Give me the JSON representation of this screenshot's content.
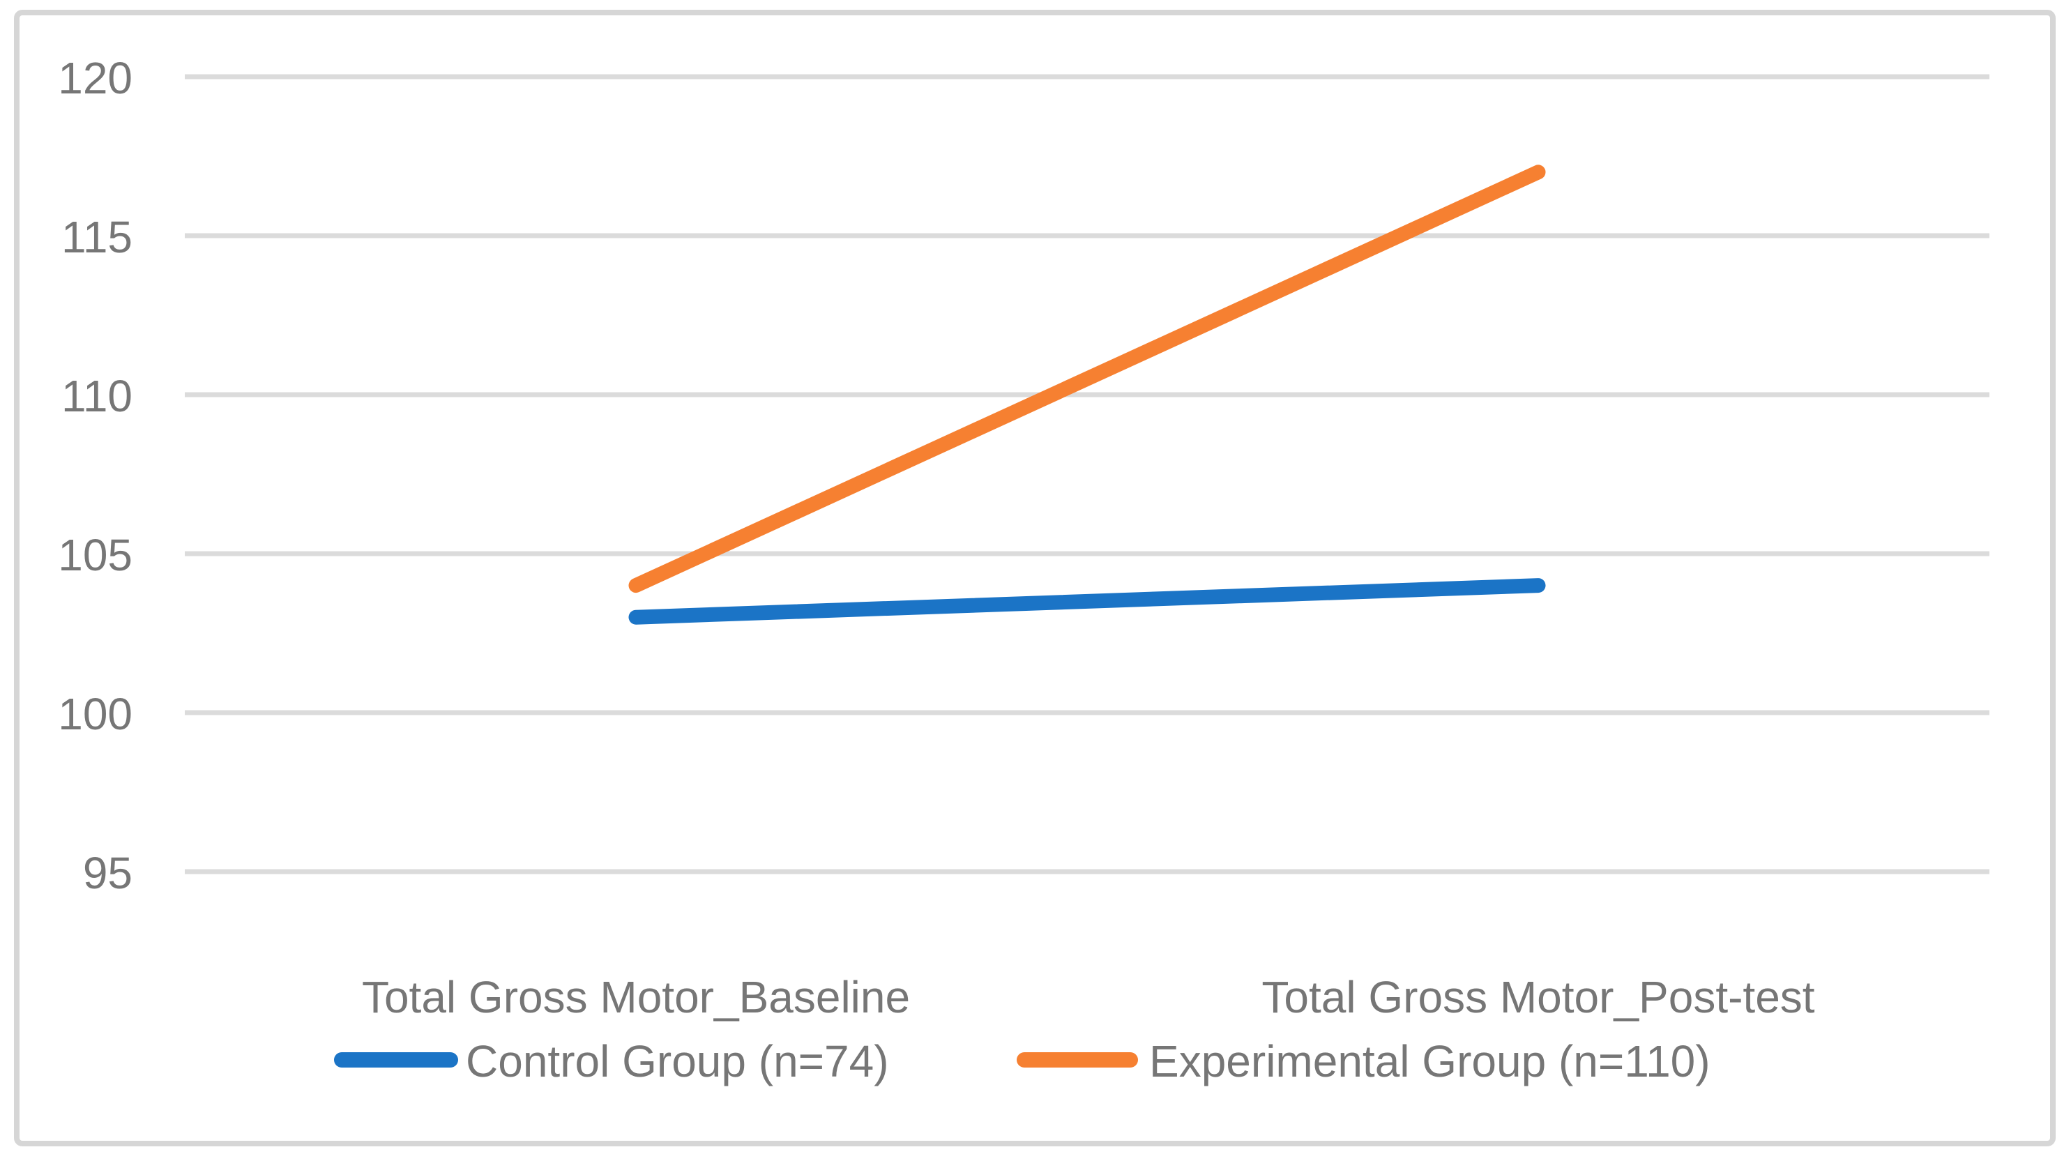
{
  "chart_data": {
    "type": "line",
    "categories": [
      "Total Gross Motor_Baseline",
      "Total Gross Motor_Post-test"
    ],
    "series": [
      {
        "name": "Control Group (n=74)",
        "color": "#1b74c6",
        "values": [
          103,
          104
        ]
      },
      {
        "name": "Experimental Group (n=110)",
        "color": "#f68031",
        "values": [
          104,
          117
        ]
      }
    ],
    "title": "",
    "xlabel": "",
    "ylabel": "",
    "ylim": [
      95,
      120
    ],
    "yticks": [
      95,
      100,
      105,
      110,
      115,
      120
    ],
    "grid": "horizontal",
    "legend_position": "bottom-center",
    "gridline_color": "#dbdbdb",
    "text_color": "#767676",
    "frame_color": "#d6d6d6",
    "background_color": "#ffffff"
  }
}
